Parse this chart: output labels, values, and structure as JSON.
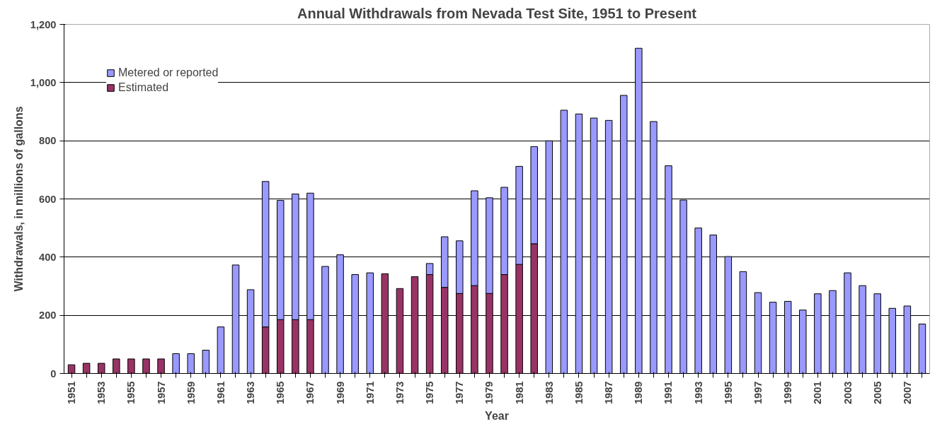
{
  "chart_data": {
    "type": "bar",
    "stacked": true,
    "title": "Annual Withdrawals from Nevada Test Site, 1951 to Present",
    "xlabel": "Year",
    "ylabel": "Withdrawals, in millions of gallons",
    "categories": [
      "1951",
      null,
      "1953",
      null,
      "1955",
      null,
      "1957",
      null,
      "1959",
      null,
      "1961",
      null,
      "1963",
      null,
      "1965",
      null,
      "1967",
      null,
      "1969",
      null,
      "1971",
      null,
      "1973",
      null,
      "1975",
      null,
      "1977",
      null,
      "1979",
      null,
      "1981",
      null,
      "1983",
      null,
      "1985",
      null,
      "1987",
      null,
      "1989",
      null,
      "1991",
      null,
      "1993",
      null,
      "1995",
      null,
      "1997",
      null,
      "1999",
      null,
      "2001",
      null,
      "2003",
      null,
      "2005",
      null,
      "2007",
      null
    ],
    "series": [
      {
        "name": "Estimated",
        "color": "#993366",
        "values": [
          30,
          35,
          35,
          50,
          50,
          50,
          50,
          null,
          null,
          null,
          null,
          null,
          null,
          160,
          185,
          185,
          185,
          null,
          null,
          null,
          null,
          343,
          292,
          333,
          340,
          296,
          275,
          302,
          275,
          340,
          375,
          446,
          null,
          null,
          null,
          null,
          null,
          null,
          null,
          null,
          null,
          null,
          null,
          null,
          null,
          null,
          null,
          null,
          null,
          null,
          null,
          null,
          null,
          null,
          null,
          null,
          null,
          null
        ]
      },
      {
        "name": "Metered or reported",
        "color": "#9999ff",
        "values": [
          null,
          null,
          null,
          null,
          null,
          null,
          null,
          68,
          68,
          80,
          160,
          373,
          288,
          500,
          410,
          432,
          435,
          368,
          408,
          340,
          346,
          null,
          null,
          null,
          38,
          174,
          181,
          326,
          329,
          300,
          337,
          334,
          800,
          905,
          892,
          878,
          870,
          956,
          1118,
          866,
          714,
          596,
          500,
          476,
          402,
          350,
          278,
          245,
          248,
          218,
          274,
          285,
          346,
          302,
          274,
          224,
          232,
          170
        ]
      }
    ],
    "ylim": [
      0,
      1200
    ],
    "yticks": [
      0,
      200,
      400,
      600,
      800,
      {
        "value": 1000,
        "label": "1,000"
      },
      {
        "value": 1200,
        "label": "1,200"
      }
    ],
    "grid": "y",
    "legend": "top left"
  }
}
